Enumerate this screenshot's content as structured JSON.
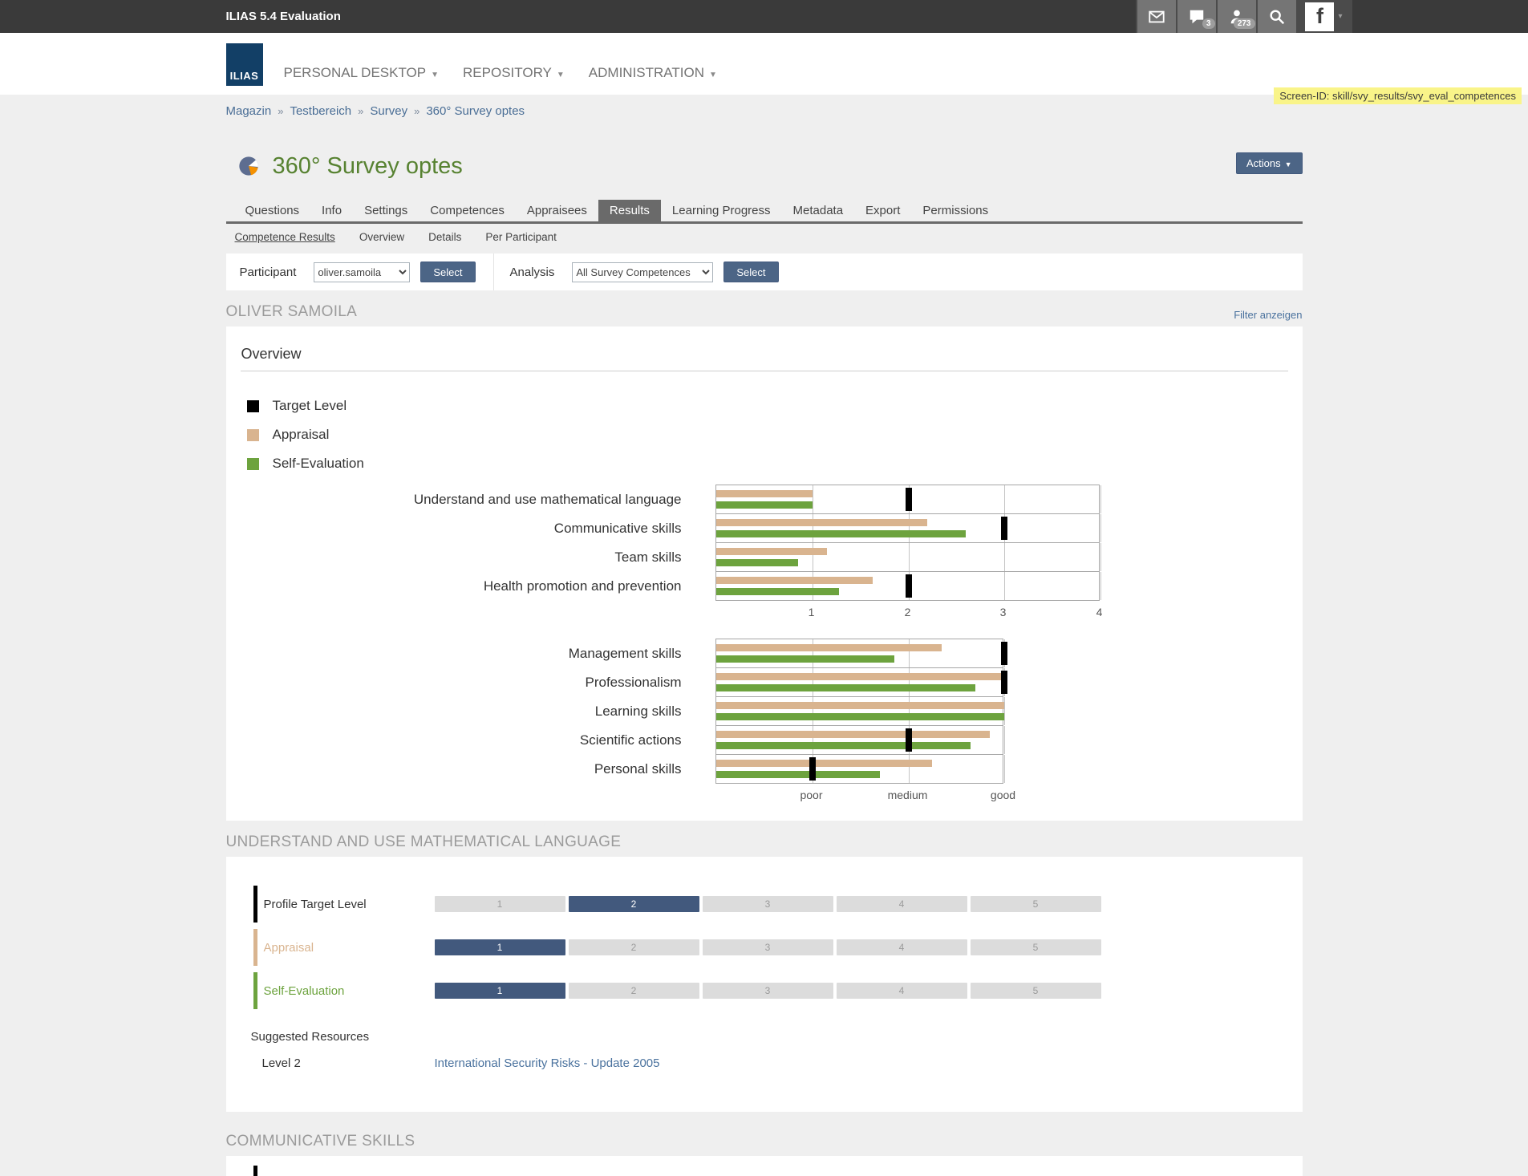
{
  "topbar": {
    "title": "ILIAS 5.4 Evaluation",
    "icons": [
      {
        "name": "mail-icon",
        "badge": null
      },
      {
        "name": "chat-icon",
        "badge": "3"
      },
      {
        "name": "users-icon",
        "badge": "273"
      },
      {
        "name": "search-icon",
        "badge": null
      }
    ],
    "avatar_label": "f"
  },
  "nav": {
    "logo": "ILIAS",
    "items": [
      {
        "label": "PERSONAL DESKTOP"
      },
      {
        "label": "REPOSITORY"
      },
      {
        "label": "ADMINISTRATION"
      }
    ]
  },
  "screen_id": "Screen-ID: skill/svy_results/svy_eval_competences",
  "breadcrumb": [
    "Magazin",
    "Testbereich",
    "Survey",
    "360° Survey optes"
  ],
  "page": {
    "title": "360° Survey optes",
    "actions_label": "Actions"
  },
  "tabs": {
    "items": [
      "Questions",
      "Info",
      "Settings",
      "Competences",
      "Appraisees",
      "Results",
      "Learning Progress",
      "Metadata",
      "Export",
      "Permissions"
    ],
    "active": "Results"
  },
  "subtabs": {
    "items": [
      "Competence Results",
      "Overview",
      "Details",
      "Per Participant"
    ],
    "active": "Competence Results"
  },
  "filterbar": {
    "participant_label": "Participant",
    "participant_value": "oliver.samoila",
    "participant_button": "Select",
    "analysis_label": "Analysis",
    "analysis_value": "All Survey Competences",
    "analysis_button": "Select"
  },
  "results": {
    "person_heading": "OLIVER SAMOILA",
    "filter_link": "Filter anzeigen",
    "overview_title": "Overview",
    "legend": [
      {
        "label": "Target Level",
        "color": "#000000"
      },
      {
        "label": "Appraisal",
        "color": "#d9b48f"
      },
      {
        "label": "Self-Evaluation",
        "color": "#6da33e"
      }
    ]
  },
  "chart_data": [
    {
      "type": "bar",
      "orientation": "horizontal",
      "categories": [
        "Understand and use mathematical language",
        "Communicative skills",
        "Team skills",
        "Health promotion and prevention"
      ],
      "series": [
        {
          "name": "Target Level",
          "values": [
            2,
            3,
            null,
            2
          ]
        },
        {
          "name": "Appraisal",
          "values": [
            1.0,
            2.2,
            1.15,
            1.63
          ]
        },
        {
          "name": "Self-Evaluation",
          "values": [
            1.0,
            2.6,
            0.85,
            1.28
          ]
        }
      ],
      "xlim": [
        0,
        4
      ],
      "xticks": [
        1,
        2,
        3,
        4
      ],
      "xtick_labels": [
        "1",
        "2",
        "3",
        "4"
      ],
      "grid": true,
      "legend_position": "top-left"
    },
    {
      "type": "bar",
      "orientation": "horizontal",
      "categories": [
        "Management skills",
        "Professionalism",
        "Learning skills",
        "Scientific actions",
        "Personal skills"
      ],
      "series": [
        {
          "name": "Target Level",
          "values": [
            3,
            3,
            null,
            2,
            1
          ]
        },
        {
          "name": "Appraisal",
          "values": [
            2.35,
            3.0,
            3.0,
            2.85,
            2.25
          ]
        },
        {
          "name": "Self-Evaluation",
          "values": [
            1.85,
            2.7,
            3.0,
            2.65,
            1.7
          ]
        }
      ],
      "xlim": [
        0,
        3
      ],
      "xticks": [
        1,
        2,
        3
      ],
      "xtick_labels": [
        "poor",
        "medium",
        "good"
      ],
      "grid": true,
      "legend_position": "top-left"
    }
  ],
  "competence_sections": [
    {
      "heading": "UNDERSTAND AND USE MATHEMATICAL LANGUAGE",
      "rows": [
        {
          "label": "Profile Target Level",
          "color": "#000000",
          "label_color": "#333333",
          "selected": 2,
          "scale": [
            1,
            2,
            3,
            4,
            5
          ]
        },
        {
          "label": "Appraisal",
          "color": "#d9b48f",
          "label_color": "#d9b48f",
          "selected": 1,
          "scale": [
            1,
            2,
            3,
            4,
            5
          ]
        },
        {
          "label": "Self-Evaluation",
          "color": "#6da33e",
          "label_color": "#6da33e",
          "selected": 1,
          "scale": [
            1,
            2,
            3,
            4,
            5
          ]
        }
      ],
      "suggested_resources_label": "Suggested Resources",
      "resources": [
        {
          "level_label": "Level 2",
          "link": "International Security Risks - Update 2005"
        }
      ]
    },
    {
      "heading": "COMMUNICATIVE SKILLS"
    }
  ]
}
